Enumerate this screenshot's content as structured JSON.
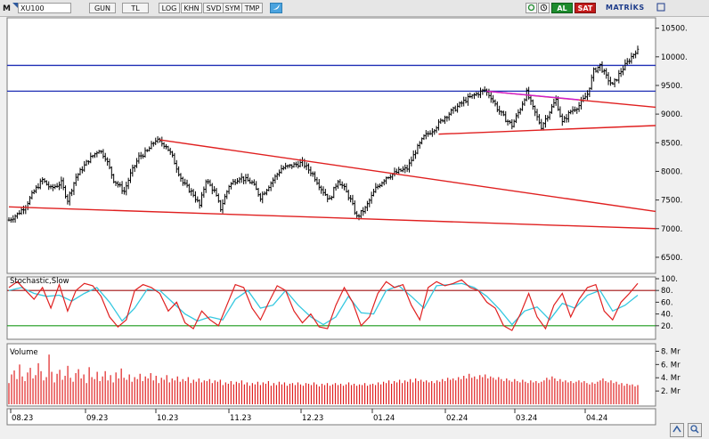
{
  "toolbar": {
    "mode_letter": "M",
    "symbol": "XU100",
    "period": "GUN",
    "currency": "TL",
    "buttons": [
      "LOG",
      "KHN",
      "SVD",
      "SYM",
      "TMP"
    ],
    "buy_label": "AL",
    "sell_label": "SAT",
    "brand": "MATRİKS"
  },
  "colors": {
    "price": "#000000",
    "horizontal_lines": "#1f2fb5",
    "trend_lines": "#e02020",
    "stoch_k": "#e02020",
    "stoch_d": "#35c8e0",
    "stoch_upper": "#a01010",
    "stoch_lower": "#1a9a1a",
    "volume": "#e02020",
    "wedge_upper": "#d020d0"
  },
  "chart_data": [
    {
      "type": "ohlc",
      "panel": "price",
      "series_name": "XU100",
      "x_tick_labels": [
        "08.23",
        "09.23",
        "10.23",
        "11.23",
        "12.23",
        "01.24",
        "02.24",
        "03.24",
        "04.24"
      ],
      "y_tick_labels": [
        "6500.",
        "7000.",
        "7500.",
        "8000.",
        "8500.",
        "9000.",
        "9500.",
        "10000.",
        "10500."
      ],
      "ylim": [
        6250,
        10650
      ],
      "close_path": [
        [
          0,
          7150
        ],
        [
          4,
          7250
        ],
        [
          8,
          7400
        ],
        [
          12,
          7650
        ],
        [
          16,
          7850
        ],
        [
          20,
          7700
        ],
        [
          25,
          7800
        ],
        [
          28,
          7500
        ],
        [
          32,
          7900
        ],
        [
          38,
          8200
        ],
        [
          43,
          8380
        ],
        [
          46,
          8250
        ],
        [
          50,
          7850
        ],
        [
          55,
          7650
        ],
        [
          58,
          7950
        ],
        [
          62,
          8250
        ],
        [
          66,
          8350
        ],
        [
          70,
          8550
        ],
        [
          75,
          8450
        ],
        [
          78,
          8250
        ],
        [
          83,
          7800
        ],
        [
          88,
          7600
        ],
        [
          91,
          7400
        ],
        [
          94,
          7850
        ],
        [
          98,
          7650
        ],
        [
          101,
          7350
        ],
        [
          105,
          7750
        ],
        [
          110,
          7900
        ],
        [
          116,
          7800
        ],
        [
          120,
          7550
        ],
        [
          125,
          7800
        ],
        [
          130,
          8050
        ],
        [
          135,
          8100
        ],
        [
          140,
          8150
        ],
        [
          145,
          7950
        ],
        [
          149,
          7700
        ],
        [
          153,
          7500
        ],
        [
          157,
          7850
        ],
        [
          160,
          7700
        ],
        [
          163,
          7500
        ],
        [
          166,
          7200
        ],
        [
          170,
          7350
        ],
        [
          175,
          7700
        ],
        [
          180,
          7900
        ],
        [
          186,
          8000
        ],
        [
          190,
          8050
        ],
        [
          194,
          8350
        ],
        [
          198,
          8600
        ],
        [
          203,
          8750
        ],
        [
          208,
          8950
        ],
        [
          213,
          9100
        ],
        [
          218,
          9250
        ],
        [
          223,
          9350
        ],
        [
          227,
          9420
        ],
        [
          230,
          9300
        ],
        [
          233,
          9100
        ],
        [
          236,
          8950
        ],
        [
          240,
          8800
        ],
        [
          244,
          9100
        ],
        [
          247,
          9380
        ],
        [
          250,
          9100
        ],
        [
          254,
          8780
        ],
        [
          258,
          9050
        ],
        [
          261,
          9250
        ],
        [
          264,
          8850
        ],
        [
          268,
          9050
        ],
        [
          272,
          9150
        ],
        [
          276,
          9350
        ],
        [
          279,
          9750
        ],
        [
          282,
          9850
        ],
        [
          285,
          9650
        ],
        [
          288,
          9500
        ],
        [
          292,
          9750
        ],
        [
          295,
          9900
        ],
        [
          299,
          10100
        ]
      ],
      "horizontal_levels": [
        9850,
        9400
      ],
      "trend_lines": [
        {
          "from": [
            72,
            8550
          ],
          "to": [
            300,
            7300
          ]
        },
        {
          "from": [
            0,
            7380
          ],
          "to": [
            300,
            7000
          ]
        },
        {
          "from": [
            228,
            9400
          ],
          "to": [
            300,
            9120
          ]
        },
        {
          "from": [
            205,
            8650
          ],
          "to": [
            300,
            8800
          ]
        }
      ],
      "wedge_segment": {
        "from": [
          228,
          9400
        ],
        "to": [
          272,
          9250
        ]
      }
    },
    {
      "type": "line",
      "panel": "stochastic",
      "title": "Stochastic,Slow",
      "ylim": [
        0,
        100
      ],
      "y_tick_labels": [
        "20.",
        "40.",
        "60.",
        "80.",
        "100."
      ],
      "levels": [
        80,
        20
      ],
      "k_path": [
        [
          0,
          85
        ],
        [
          4,
          95
        ],
        [
          8,
          80
        ],
        [
          12,
          65
        ],
        [
          16,
          85
        ],
        [
          20,
          50
        ],
        [
          24,
          90
        ],
        [
          28,
          45
        ],
        [
          32,
          80
        ],
        [
          36,
          92
        ],
        [
          40,
          88
        ],
        [
          44,
          70
        ],
        [
          48,
          35
        ],
        [
          52,
          18
        ],
        [
          56,
          30
        ],
        [
          60,
          80
        ],
        [
          64,
          90
        ],
        [
          68,
          85
        ],
        [
          72,
          75
        ],
        [
          76,
          45
        ],
        [
          80,
          60
        ],
        [
          84,
          25
        ],
        [
          88,
          15
        ],
        [
          92,
          45
        ],
        [
          96,
          30
        ],
        [
          100,
          20
        ],
        [
          104,
          55
        ],
        [
          108,
          90
        ],
        [
          112,
          85
        ],
        [
          116,
          50
        ],
        [
          120,
          30
        ],
        [
          124,
          60
        ],
        [
          128,
          88
        ],
        [
          132,
          80
        ],
        [
          136,
          45
        ],
        [
          140,
          25
        ],
        [
          144,
          40
        ],
        [
          148,
          18
        ],
        [
          152,
          15
        ],
        [
          156,
          55
        ],
        [
          160,
          85
        ],
        [
          164,
          60
        ],
        [
          168,
          20
        ],
        [
          172,
          35
        ],
        [
          176,
          75
        ],
        [
          180,
          95
        ],
        [
          184,
          85
        ],
        [
          188,
          90
        ],
        [
          192,
          55
        ],
        [
          196,
          30
        ],
        [
          200,
          85
        ],
        [
          204,
          95
        ],
        [
          208,
          88
        ],
        [
          212,
          92
        ],
        [
          216,
          98
        ],
        [
          220,
          85
        ],
        [
          224,
          80
        ],
        [
          228,
          60
        ],
        [
          232,
          50
        ],
        [
          236,
          20
        ],
        [
          240,
          12
        ],
        [
          244,
          40
        ],
        [
          248,
          75
        ],
        [
          252,
          35
        ],
        [
          256,
          15
        ],
        [
          260,
          55
        ],
        [
          264,
          75
        ],
        [
          268,
          35
        ],
        [
          272,
          65
        ],
        [
          276,
          85
        ],
        [
          280,
          90
        ],
        [
          284,
          45
        ],
        [
          288,
          30
        ],
        [
          292,
          60
        ],
        [
          296,
          75
        ],
        [
          300,
          92
        ]
      ],
      "d_path": [
        [
          0,
          80
        ],
        [
          6,
          85
        ],
        [
          12,
          75
        ],
        [
          18,
          70
        ],
        [
          24,
          72
        ],
        [
          30,
          62
        ],
        [
          36,
          75
        ],
        [
          42,
          85
        ],
        [
          48,
          60
        ],
        [
          54,
          28
        ],
        [
          60,
          50
        ],
        [
          66,
          82
        ],
        [
          72,
          80
        ],
        [
          78,
          60
        ],
        [
          84,
          40
        ],
        [
          90,
          28
        ],
        [
          96,
          35
        ],
        [
          102,
          30
        ],
        [
          108,
          65
        ],
        [
          114,
          80
        ],
        [
          120,
          50
        ],
        [
          126,
          55
        ],
        [
          132,
          80
        ],
        [
          138,
          55
        ],
        [
          144,
          35
        ],
        [
          150,
          22
        ],
        [
          156,
          35
        ],
        [
          162,
          70
        ],
        [
          168,
          42
        ],
        [
          174,
          40
        ],
        [
          180,
          80
        ],
        [
          186,
          88
        ],
        [
          192,
          70
        ],
        [
          198,
          50
        ],
        [
          204,
          88
        ],
        [
          210,
          90
        ],
        [
          216,
          92
        ],
        [
          222,
          85
        ],
        [
          228,
          70
        ],
        [
          234,
          48
        ],
        [
          240,
          22
        ],
        [
          246,
          45
        ],
        [
          252,
          52
        ],
        [
          258,
          30
        ],
        [
          264,
          58
        ],
        [
          270,
          50
        ],
        [
          276,
          72
        ],
        [
          282,
          80
        ],
        [
          288,
          45
        ],
        [
          294,
          55
        ],
        [
          300,
          72
        ]
      ]
    },
    {
      "type": "bar",
      "panel": "volume",
      "title": "Volume",
      "ylim": [
        0,
        8.6
      ],
      "y_tick_labels": [
        "2. Mr",
        "4. Mr",
        "6. Mr",
        "8. Mr"
      ],
      "values": [
        3.2,
        4.5,
        5.1,
        3.8,
        6.0,
        4.2,
        3.5,
        4.8,
        5.5,
        3.9,
        4.4,
        6.2,
        5.0,
        3.6,
        4.1,
        7.5,
        4.9,
        3.3,
        4.6,
        5.2,
        3.7,
        4.3,
        5.8,
        4.0,
        3.4,
        4.7,
        5.3,
        3.9,
        4.5,
        3.2,
        5.6,
        4.1,
        3.8,
        4.9,
        3.5,
        4.2,
        5.0,
        3.6,
        4.4,
        3.3,
        4.8,
        3.9,
        5.4,
        4.0,
        3.7,
        4.5,
        3.4,
        4.1,
        3.8,
        4.6,
        3.5,
        4.2,
        3.9,
        4.7,
        3.6,
        4.3,
        3.2,
        4.0,
        3.7,
        4.4,
        3.3,
        3.9,
        3.6,
        4.2,
        3.4,
        3.8,
        3.5,
        4.1,
        3.2,
        3.7,
        3.4,
        3.9,
        3.3,
        3.6,
        3.5,
        3.8,
        3.2,
        3.6,
        3.4,
        3.7,
        2.9,
        3.3,
        3.1,
        3.5,
        3.0,
        3.4,
        3.2,
        3.6,
        3.0,
        3.3,
        2.8,
        3.2,
        3.0,
        3.4,
        2.9,
        3.3,
        3.1,
        3.5,
        2.8,
        3.2,
        2.9,
        3.4,
        3.0,
        3.3,
        2.8,
        3.1,
        3.2,
        2.9,
        3.3,
        3.0,
        2.8,
        3.2,
        3.1,
        2.9,
        3.3,
        3.0,
        2.7,
        3.1,
        2.9,
        3.2,
        2.8,
        3.0,
        3.2,
        2.9,
        3.1,
        2.8,
        3.0,
        3.3,
        2.9,
        3.1,
        2.8,
        3.0,
        2.9,
        3.2,
        2.8,
        3.0,
        3.1,
        2.9,
        3.3,
        3.0,
        3.4,
        3.2,
        3.6,
        3.1,
        3.5,
        3.3,
        3.7,
        3.2,
        3.6,
        3.4,
        3.8,
        3.3,
        3.9,
        3.5,
        3.7,
        3.4,
        3.6,
        3.3,
        3.5,
        3.2,
        3.6,
        3.4,
        3.8,
        3.5,
        4.0,
        3.7,
        3.9,
        3.6,
        4.1,
        3.8,
        4.3,
        3.9,
        4.6,
        4.0,
        4.2,
        3.8,
        4.4,
        4.1,
        4.5,
        3.9,
        4.2,
        4.0,
        3.7,
        4.1,
        3.8,
        3.5,
        3.9,
        3.6,
        3.4,
        3.8,
        3.5,
        3.3,
        3.7,
        3.4,
        3.2,
        3.6,
        3.3,
        3.5,
        3.2,
        3.4,
        3.6,
        4.0,
        3.7,
        4.2,
        3.9,
        3.5,
        3.8,
        3.4,
        3.6,
        3.3,
        3.5,
        3.2,
        3.4,
        3.6,
        3.3,
        3.5,
        3.2,
        3.0,
        3.3,
        3.1,
        3.4,
        3.6,
        3.9,
        3.5,
        3.3,
        3.6,
        3.2,
        3.4,
        3.0,
        3.2,
        2.8,
        3.1,
        2.9,
        3.0,
        2.7,
        2.9
      ]
    }
  ]
}
